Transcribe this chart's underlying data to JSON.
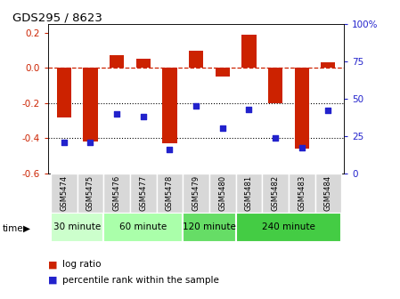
{
  "title": "GDS295 / 8623",
  "samples": [
    "GSM5474",
    "GSM5475",
    "GSM5476",
    "GSM5477",
    "GSM5478",
    "GSM5479",
    "GSM5480",
    "GSM5481",
    "GSM5482",
    "GSM5483",
    "GSM5484"
  ],
  "log_ratio": [
    -0.28,
    -0.42,
    0.07,
    0.05,
    -0.43,
    0.1,
    -0.05,
    0.19,
    -0.2,
    -0.46,
    0.03
  ],
  "percentile": [
    21,
    21,
    40,
    38,
    16,
    45,
    30,
    43,
    24,
    17,
    42
  ],
  "bar_color": "#cc2200",
  "dot_color": "#2222cc",
  "groups": [
    {
      "label": "30 minute",
      "start": 0,
      "end": 1,
      "color": "#ccffcc"
    },
    {
      "label": "60 minute",
      "start": 2,
      "end": 4,
      "color": "#aaffaa"
    },
    {
      "label": "120 minute",
      "start": 5,
      "end": 6,
      "color": "#66dd66"
    },
    {
      "label": "240 minute",
      "start": 7,
      "end": 10,
      "color": "#44cc44"
    }
  ],
  "ylim_left": [
    -0.6,
    0.25
  ],
  "ylim_right": [
    0,
    100
  ],
  "yticks_left": [
    -0.6,
    -0.4,
    -0.2,
    0.0,
    0.2
  ],
  "yticks_right": [
    0,
    25,
    50,
    75,
    100
  ],
  "hline_color": "#cc2200",
  "background_color": "#ffffff"
}
